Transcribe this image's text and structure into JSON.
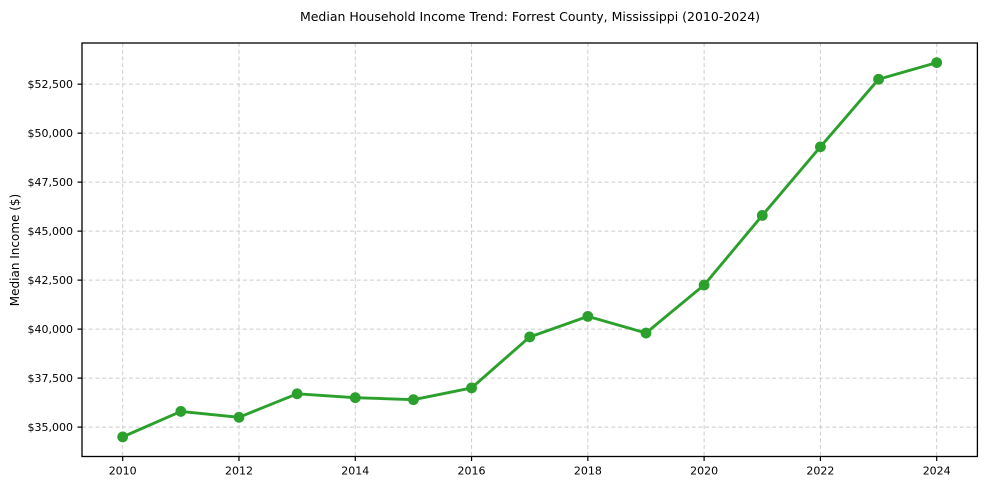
{
  "chart_data": {
    "type": "line",
    "title": "Median Household Income Trend: Forrest County, Mississippi (2010-2024)",
    "xlabel": "",
    "ylabel": "Median Income ($)",
    "series": [
      {
        "name": "Median Household Income",
        "x": [
          2010,
          2011,
          2012,
          2013,
          2014,
          2015,
          2016,
          2017,
          2018,
          2019,
          2020,
          2021,
          2022,
          2023,
          2024
        ],
        "y": [
          34500,
          35800,
          35500,
          36700,
          36500,
          36400,
          37000,
          39600,
          40650,
          39800,
          42250,
          45800,
          49300,
          52750,
          53600
        ]
      }
    ],
    "xlim": [
      2009.3,
      2024.7
    ],
    "ylim": [
      33500,
      54600
    ],
    "xticks": {
      "values": [
        2010,
        2012,
        2014,
        2016,
        2018,
        2020,
        2022,
        2024
      ],
      "labels": [
        "2010",
        "2012",
        "2014",
        "2016",
        "2018",
        "2020",
        "2022",
        "2024"
      ]
    },
    "yticks": {
      "values": [
        35000,
        37500,
        40000,
        42500,
        45000,
        47500,
        50000,
        52500
      ],
      "labels": [
        "$35,000",
        "$37,500",
        "$40,000",
        "$42,500",
        "$45,000",
        "$47,500",
        "$50,000",
        "$52,500"
      ]
    },
    "grid": true,
    "legend": false,
    "colors": {
      "line": "#2ca02c",
      "marker": "#2ca02c",
      "grid": "#cccccc",
      "spine": "#000000",
      "text": "#000000",
      "background": "#ffffff"
    }
  }
}
